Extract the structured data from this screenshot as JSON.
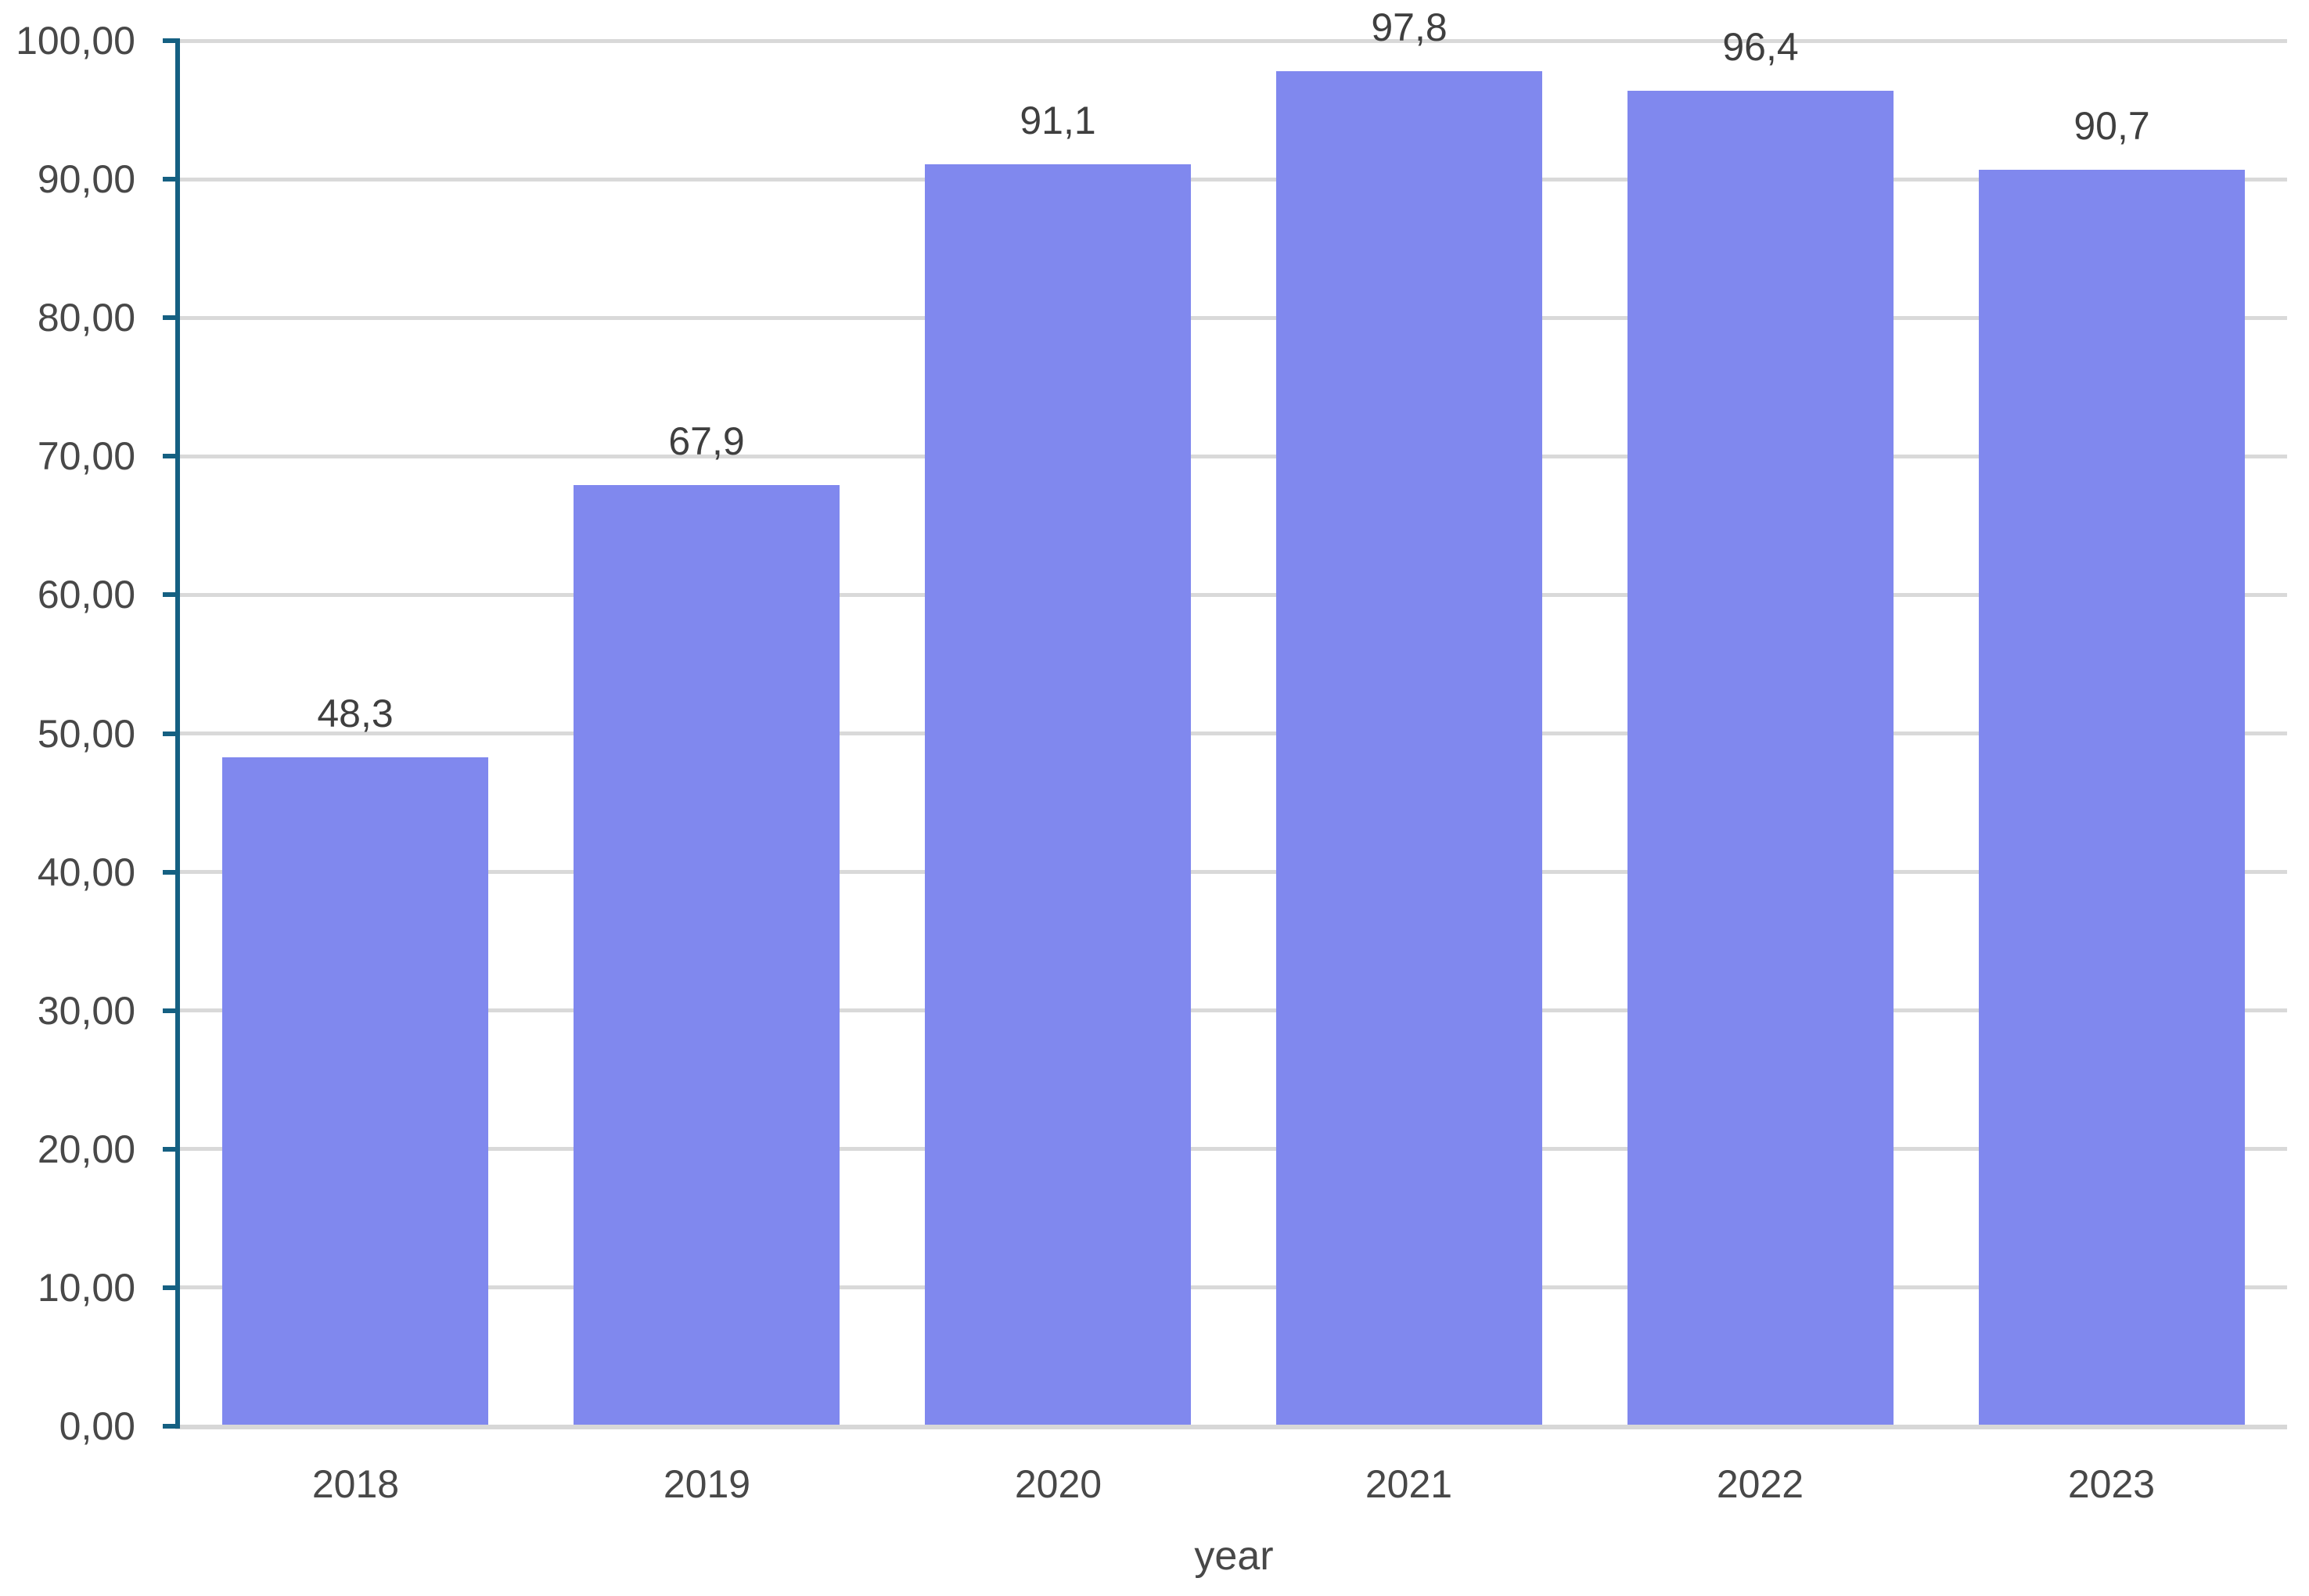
{
  "chart_data": {
    "type": "bar",
    "title": "",
    "xlabel": "year",
    "ylabel": "",
    "categories": [
      "2018",
      "2019",
      "2020",
      "2021",
      "2022",
      "2023"
    ],
    "values": [
      48.3,
      67.9,
      91.1,
      97.8,
      96.4,
      90.7
    ],
    "value_labels": [
      "48,3",
      "67,9",
      "91,1",
      "97,8",
      "96,4",
      "90,7"
    ],
    "ylim": [
      0,
      100
    ],
    "ytick_step": 10,
    "ytick_values": [
      0,
      10,
      20,
      30,
      40,
      50,
      60,
      70,
      80,
      90,
      100
    ],
    "ytick_labels": [
      "0,00",
      "10,00",
      "20,00",
      "30,00",
      "40,00",
      "50,00",
      "60,00",
      "70,00",
      "80,00",
      "90,00",
      "100,00"
    ],
    "grid": true,
    "legend": false,
    "colors": {
      "bar": "#8088ee",
      "axis_line": "#156082",
      "gridline": "#d9d9d9",
      "text": "#484848"
    }
  }
}
